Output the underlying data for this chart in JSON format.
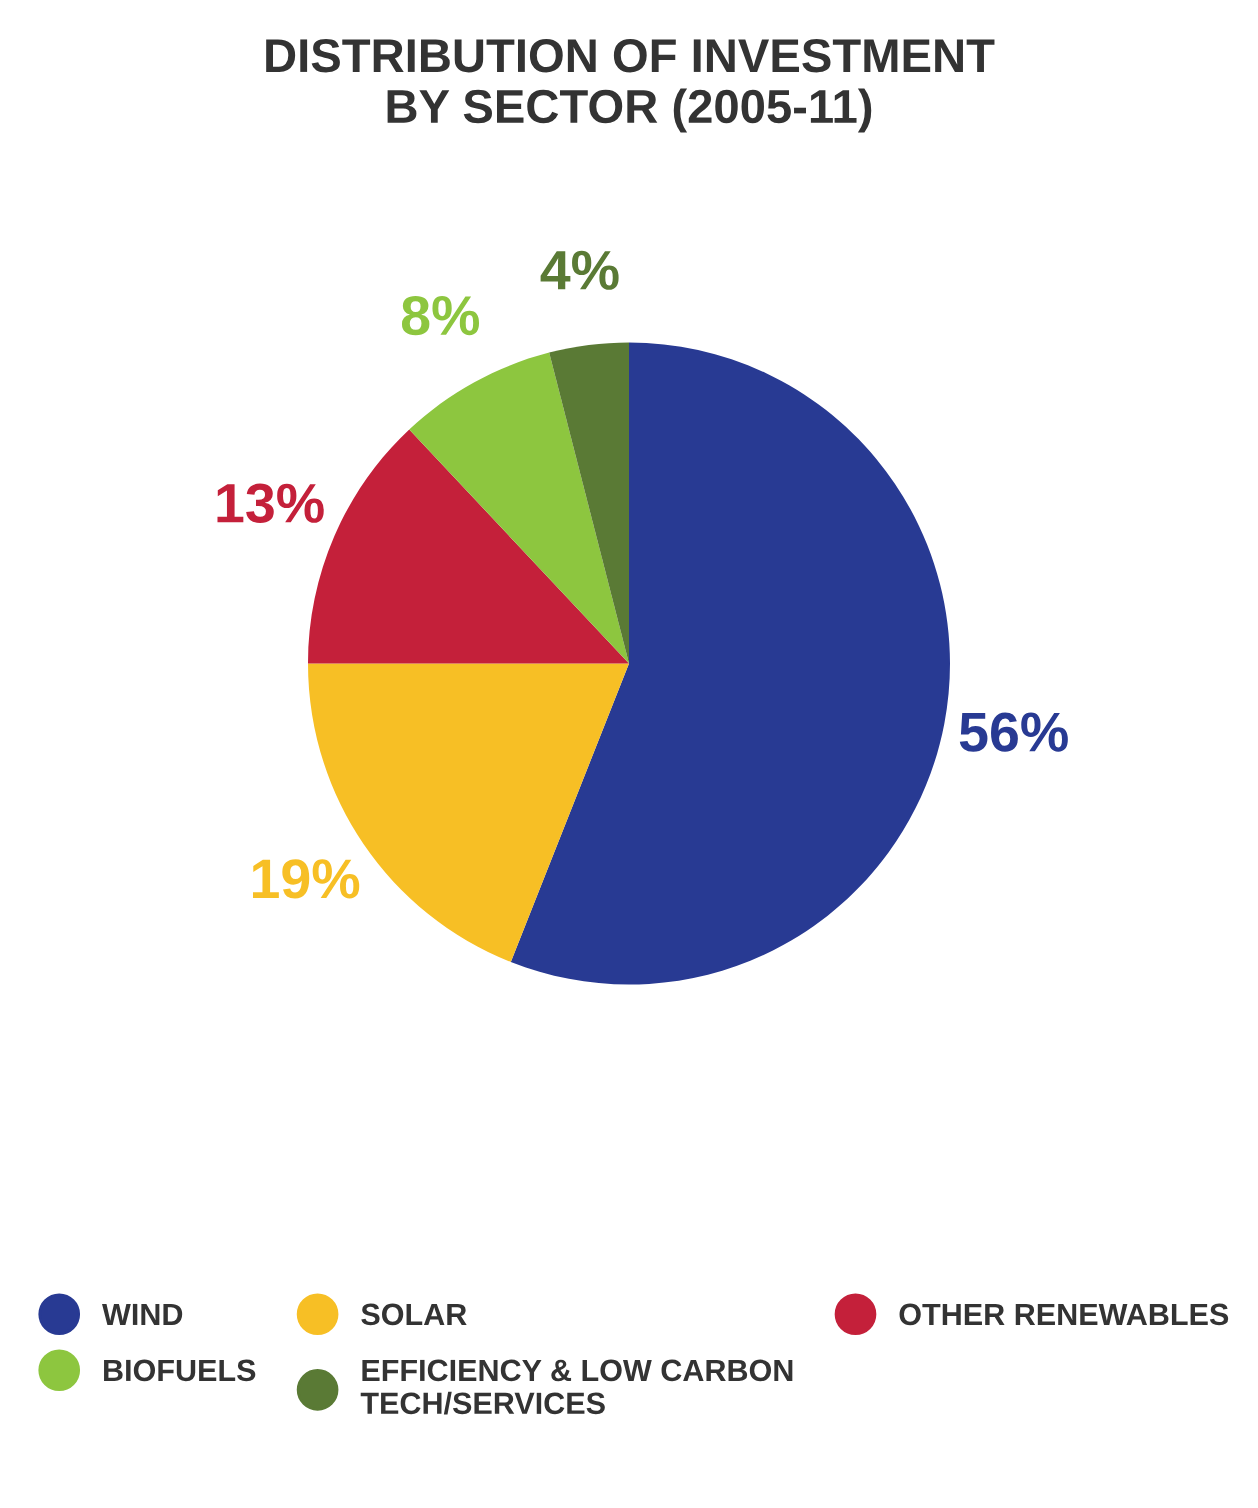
{
  "chart_data": {
    "type": "pie",
    "title": "DISTRIBUTION OF INVESTMENT\nBY SECTOR (2005-11)",
    "categories": [
      "WIND",
      "SOLAR",
      "OTHER RENEWABLES",
      "BIOFUELS",
      "EFFICIENCY & LOW CARBON\nTECH/SERVICES"
    ],
    "values": [
      56,
      19,
      13,
      8,
      4
    ],
    "colors": [
      "#283a93",
      "#f7bf25",
      "#c4203a",
      "#8dc63f",
      "#5a7a35"
    ],
    "value_labels": [
      "56%",
      "19%",
      "13%",
      "8%",
      "4%"
    ],
    "legend": "bottom"
  }
}
